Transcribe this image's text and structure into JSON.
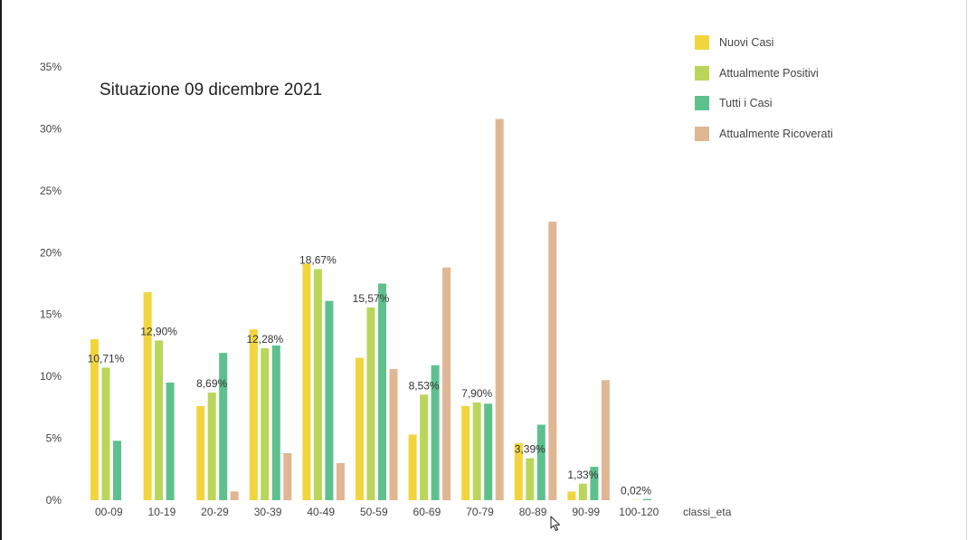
{
  "chart_data": {
    "type": "bar",
    "title": "Situazione 09 dicembre 2021",
    "xlabel": "classi_eta",
    "ylabel": "",
    "categories": [
      "00-09",
      "10-19",
      "20-29",
      "30-39",
      "40-49",
      "50-59",
      "60-69",
      "70-79",
      "80-89",
      "90-99",
      "100-120"
    ],
    "ylim": [
      0,
      35
    ],
    "yticks": [
      "0%",
      "5%",
      "10%",
      "15%",
      "20%",
      "25%",
      "30%",
      "35%"
    ],
    "grid": false,
    "legend_position": "top-right",
    "series": [
      {
        "name": "Nuovi Casi",
        "color": "#F2D53C",
        "values": [
          13.0,
          16.8,
          7.6,
          13.8,
          19.1,
          11.5,
          5.3,
          7.6,
          4.6,
          0.7,
          0.0
        ]
      },
      {
        "name": "Attualmente Positivi",
        "color": "#B9D65A",
        "values": [
          10.71,
          12.9,
          8.69,
          12.28,
          18.67,
          15.57,
          8.53,
          7.9,
          3.39,
          1.33,
          0.02
        ]
      },
      {
        "name": "Tutti i Casi",
        "color": "#5EC18D",
        "values": [
          4.8,
          9.5,
          11.9,
          12.5,
          16.1,
          17.5,
          10.9,
          7.8,
          6.1,
          2.7,
          0.1
        ]
      },
      {
        "name": "Attualmente Ricoverati",
        "color": "#E0B693",
        "values": [
          0.0,
          0.0,
          0.7,
          3.8,
          3.0,
          10.6,
          18.8,
          30.8,
          22.5,
          9.7,
          0.0
        ]
      }
    ],
    "data_labels": {
      "series": "Attualmente Positivi",
      "labels": [
        "10,71%",
        "12,90%",
        "8,69%",
        "12,28%",
        "18,67%",
        "15,57%",
        "8,53%",
        "7,90%",
        "3,39%",
        "1,33%",
        "0,02%"
      ]
    }
  },
  "icons": {
    "cursor": "mouse-pointer-icon"
  }
}
